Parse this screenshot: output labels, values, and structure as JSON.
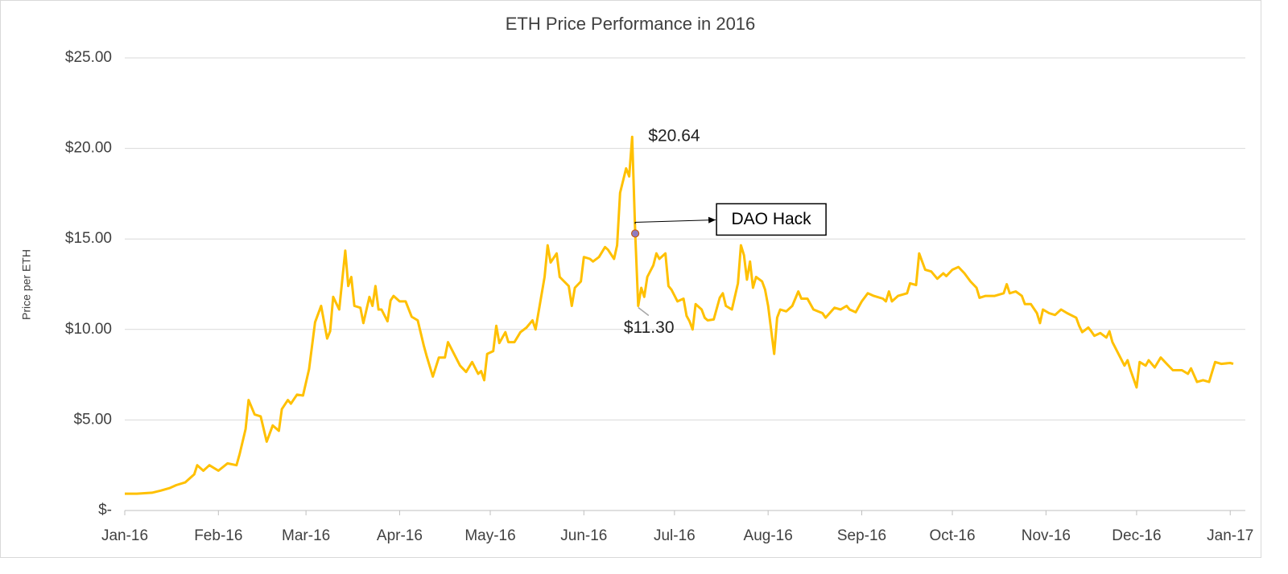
{
  "chart_data": {
    "type": "line",
    "title": "ETH Price Performance in 2016",
    "y_label": "Price per ETH",
    "color": "#ffc000",
    "grid": true,
    "xlim": [
      0,
      371
    ],
    "xticks": [
      {
        "value": 0,
        "label": "Jan-16"
      },
      {
        "value": 31,
        "label": "Feb-16"
      },
      {
        "value": 60,
        "label": "Mar-16"
      },
      {
        "value": 91,
        "label": "Apr-16"
      },
      {
        "value": 121,
        "label": "May-16"
      },
      {
        "value": 152,
        "label": "Jun-16"
      },
      {
        "value": 182,
        "label": "Jul-16"
      },
      {
        "value": 213,
        "label": "Aug-16"
      },
      {
        "value": 244,
        "label": "Sep-16"
      },
      {
        "value": 274,
        "label": "Oct-16"
      },
      {
        "value": 305,
        "label": "Nov-16"
      },
      {
        "value": 335,
        "label": "Dec-16"
      },
      {
        "value": 366,
        "label": "Jan-17"
      }
    ],
    "ylim": [
      0,
      25
    ],
    "yticks": [
      {
        "value": 0,
        "label": "$-"
      },
      {
        "value": 5,
        "label": "$5.00"
      },
      {
        "value": 10,
        "label": "$10.00"
      },
      {
        "value": 15,
        "label": "$15.00"
      },
      {
        "value": 20,
        "label": "$20.00"
      },
      {
        "value": 25,
        "label": "$25.00"
      }
    ],
    "x": [
      0,
      4,
      9,
      12,
      15,
      17,
      20,
      23,
      24,
      26,
      28,
      31,
      34,
      37,
      38,
      40,
      41,
      43,
      45,
      47,
      49,
      51,
      52,
      54,
      55,
      57,
      59,
      61,
      63,
      65,
      67,
      68,
      69,
      71,
      73,
      74,
      75,
      76,
      78,
      79,
      81,
      82,
      83,
      84,
      85,
      87,
      88,
      89,
      91,
      93,
      95,
      97,
      99,
      100,
      102,
      104,
      106,
      107,
      109,
      111,
      113,
      115,
      117,
      118,
      119,
      120,
      122,
      123,
      124,
      126,
      127,
      129,
      131,
      133,
      135,
      136,
      139,
      140,
      141,
      143,
      144,
      147,
      148,
      149,
      151,
      152,
      154,
      155,
      157,
      159,
      160,
      162,
      163,
      164,
      166,
      167,
      168,
      169,
      170,
      171,
      172,
      173,
      175,
      176,
      177,
      179,
      180,
      181,
      183,
      185,
      186,
      187,
      188,
      189,
      191,
      192,
      193,
      195,
      197,
      198,
      199,
      201,
      203,
      204,
      205,
      206,
      207,
      208,
      209,
      211,
      212,
      213,
      215,
      216,
      217,
      219,
      221,
      223,
      224,
      226,
      228,
      231,
      232,
      235,
      237,
      239,
      240,
      242,
      244,
      246,
      248,
      251,
      252,
      253,
      254,
      256,
      259,
      260,
      262,
      263,
      265,
      267,
      269,
      271,
      272,
      274,
      276,
      278,
      280,
      282,
      283,
      285,
      288,
      291,
      292,
      293,
      295,
      297,
      298,
      300,
      302,
      303,
      304,
      306,
      308,
      310,
      312,
      315,
      316,
      317,
      319,
      320,
      321,
      323,
      325,
      326,
      327,
      329,
      331,
      332,
      333,
      335,
      336,
      338,
      339,
      341,
      343,
      345,
      347,
      350,
      352,
      353,
      355,
      357,
      359,
      360,
      361,
      363,
      366,
      367
    ],
    "values": [
      0.93,
      0.93,
      0.98,
      1.1,
      1.25,
      1.4,
      1.55,
      2.0,
      2.5,
      2.2,
      2.5,
      2.2,
      2.6,
      2.5,
      3.1,
      4.5,
      6.1,
      5.3,
      5.2,
      3.8,
      4.7,
      4.4,
      5.6,
      6.1,
      5.9,
      6.4,
      6.35,
      7.8,
      10.4,
      11.3,
      9.5,
      9.9,
      11.8,
      11.1,
      14.35,
      12.4,
      12.9,
      11.3,
      11.2,
      10.35,
      11.8,
      11.3,
      12.4,
      11.1,
      11.1,
      10.45,
      11.6,
      11.85,
      11.55,
      11.55,
      10.7,
      10.5,
      9.1,
      8.5,
      7.4,
      8.45,
      8.45,
      9.3,
      8.65,
      8.0,
      7.65,
      8.2,
      7.55,
      7.7,
      7.2,
      8.65,
      8.8,
      10.2,
      9.25,
      9.85,
      9.3,
      9.3,
      9.85,
      10.1,
      10.5,
      10.0,
      12.9,
      14.65,
      13.7,
      14.2,
      12.9,
      12.4,
      11.3,
      12.3,
      12.65,
      14.0,
      13.9,
      13.75,
      14.0,
      14.55,
      14.4,
      13.9,
      14.65,
      17.55,
      18.9,
      18.45,
      20.64,
      15.3,
      11.3,
      12.3,
      11.8,
      12.9,
      13.55,
      14.2,
      13.9,
      14.2,
      12.4,
      12.2,
      11.55,
      11.7,
      10.75,
      10.45,
      10.0,
      11.4,
      11.1,
      10.65,
      10.5,
      10.55,
      11.75,
      12.0,
      11.3,
      11.1,
      12.55,
      14.65,
      14.1,
      12.75,
      13.75,
      12.3,
      12.9,
      12.65,
      12.2,
      11.3,
      8.65,
      10.65,
      11.1,
      11.0,
      11.3,
      12.1,
      11.7,
      11.7,
      11.1,
      10.9,
      10.65,
      11.2,
      11.1,
      11.3,
      11.1,
      10.95,
      11.55,
      12.0,
      11.85,
      11.7,
      11.55,
      12.1,
      11.55,
      11.85,
      12.0,
      12.55,
      12.45,
      14.2,
      13.3,
      13.2,
      12.8,
      13.1,
      12.95,
      13.3,
      13.45,
      13.1,
      12.65,
      12.3,
      11.75,
      11.85,
      11.85,
      12.0,
      12.5,
      12.0,
      12.1,
      11.85,
      11.4,
      11.4,
      10.9,
      10.35,
      11.1,
      10.9,
      10.8,
      11.1,
      10.9,
      10.65,
      10.2,
      9.85,
      10.1,
      9.9,
      9.65,
      9.8,
      9.55,
      9.9,
      9.3,
      8.65,
      8.0,
      8.3,
      7.75,
      6.8,
      8.2,
      8.0,
      8.3,
      7.9,
      8.45,
      8.1,
      7.75,
      7.75,
      7.55,
      7.85,
      7.1,
      7.2,
      7.1,
      7.65,
      8.2,
      8.1,
      8.15,
      8.1
    ],
    "annotations": [
      {
        "label": "$20.64",
        "x": 168,
        "value": 20.64
      },
      {
        "label": "$11.30",
        "x": 170,
        "value": 11.3
      },
      {
        "label": "DAO Hack",
        "x": 169,
        "value": 15.3
      }
    ]
  }
}
